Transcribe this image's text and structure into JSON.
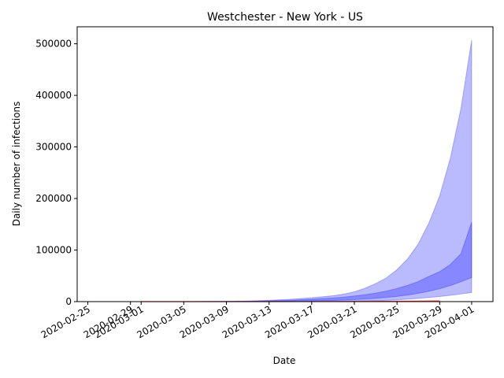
{
  "chart_data": {
    "type": "area",
    "title": "Westchester - New York - US",
    "xlabel": "Date",
    "ylabel": "Daily number of infections",
    "x_type": "date",
    "xlim": [
      "2020-02-24",
      "2020-04-03"
    ],
    "ylim": [
      0,
      533000
    ],
    "x_ticks": [
      "2020-02-25",
      "2020-02-29",
      "2020-03-01",
      "2020-03-05",
      "2020-03-09",
      "2020-03-13",
      "2020-03-17",
      "2020-03-21",
      "2020-03-25",
      "2020-03-29",
      "2020-04-01"
    ],
    "y_ticks": [
      0,
      100000,
      200000,
      300000,
      400000,
      500000
    ],
    "y_tick_labels": [
      "0",
      "100000",
      "200000",
      "300000",
      "400000",
      "500000"
    ],
    "grid": false,
    "legend": "none",
    "series": [
      {
        "color": "#0000ff",
        "role": "outer-band",
        "opacity": 0.27,
        "x": [
          "2020-03-01",
          "2020-03-03",
          "2020-03-05",
          "2020-03-07",
          "2020-03-09",
          "2020-03-11",
          "2020-03-13",
          "2020-03-15",
          "2020-03-17",
          "2020-03-19",
          "2020-03-20",
          "2020-03-21",
          "2020-03-22",
          "2020-03-23",
          "2020-03-24",
          "2020-03-25",
          "2020-03-26",
          "2020-03-27",
          "2020-03-28",
          "2020-03-29",
          "2020-03-30",
          "2020-03-31",
          "2020-04-01"
        ],
        "lower": [
          0,
          0,
          0,
          0,
          0,
          0,
          0,
          0,
          100,
          300,
          500,
          800,
          1200,
          1800,
          2500,
          3500,
          4800,
          6300,
          8000,
          10000,
          12200,
          14800,
          17500
        ],
        "upper": [
          0,
          0,
          0,
          200,
          600,
          1200,
          2500,
          4500,
          7500,
          11500,
          14500,
          19000,
          26000,
          35000,
          46000,
          62000,
          83000,
          112000,
          153000,
          205000,
          278000,
          375000,
          507000
        ]
      },
      {
        "color": "#0000ff",
        "role": "inner-band",
        "opacity": 0.27,
        "x": [
          "2020-03-01",
          "2020-03-03",
          "2020-03-05",
          "2020-03-07",
          "2020-03-09",
          "2020-03-11",
          "2020-03-13",
          "2020-03-15",
          "2020-03-17",
          "2020-03-19",
          "2020-03-20",
          "2020-03-21",
          "2020-03-22",
          "2020-03-23",
          "2020-03-24",
          "2020-03-25",
          "2020-03-26",
          "2020-03-27",
          "2020-03-28",
          "2020-03-29",
          "2020-03-30",
          "2020-03-31",
          "2020-04-01"
        ],
        "lower": [
          0,
          0,
          0,
          0,
          0,
          100,
          300,
          700,
          1300,
          2200,
          2900,
          3800,
          4900,
          6300,
          8000,
          10200,
          12800,
          16000,
          20000,
          25000,
          31000,
          38500,
          46500
        ],
        "upper": [
          0,
          0,
          0,
          100,
          300,
          700,
          1500,
          2700,
          4500,
          7000,
          8700,
          10800,
          13300,
          16500,
          20500,
          25500,
          31500,
          39000,
          49000,
          58000,
          72000,
          93000,
          154000
        ]
      },
      {
        "color": "#ff4040",
        "role": "line",
        "x": [
          "2020-03-01",
          "2020-03-13",
          "2020-03-20",
          "2020-03-24",
          "2020-03-27",
          "2020-03-29"
        ],
        "values": [
          0,
          0,
          200,
          600,
          1000,
          1300
        ]
      }
    ]
  }
}
